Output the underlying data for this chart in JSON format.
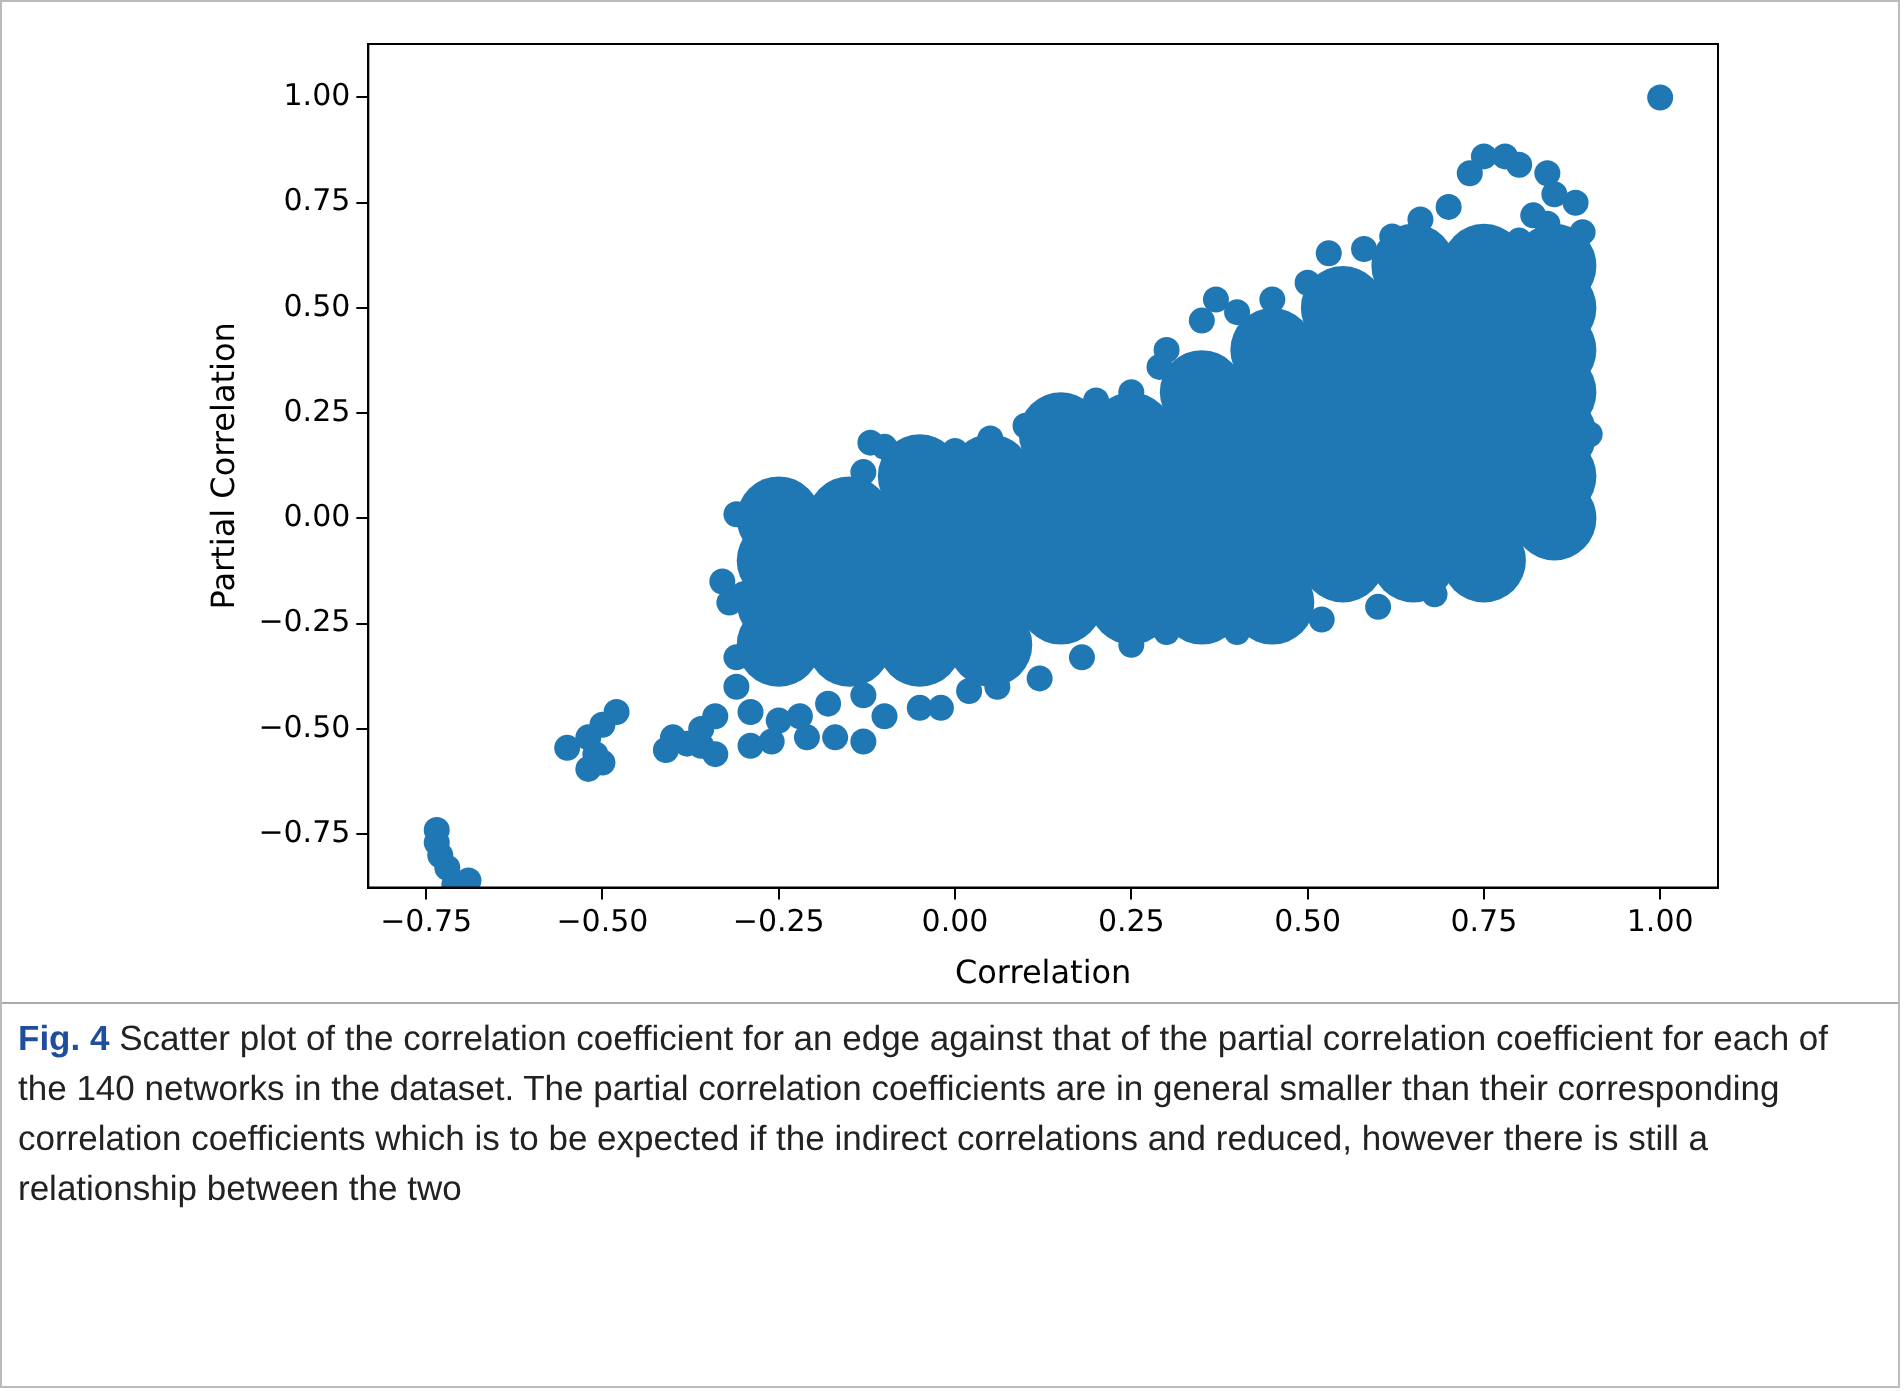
{
  "chart_data": {
    "type": "scatter",
    "xlabel": "Correlation",
    "ylabel": "Partial Correlation",
    "marker": "circle",
    "grid": false,
    "xlim": [
      -0.832,
      1.082
    ],
    "ylim": [
      -0.877,
      1.127
    ],
    "xticks": [
      {
        "value": -0.75,
        "label": "−0.75"
      },
      {
        "value": -0.5,
        "label": "−0.50"
      },
      {
        "value": -0.25,
        "label": "−0.25"
      },
      {
        "value": 0,
        "label": "0.00"
      },
      {
        "value": 0.25,
        "label": "0.25"
      },
      {
        "value": 0.5,
        "label": "0.50"
      },
      {
        "value": 0.75,
        "label": "0.75"
      },
      {
        "value": 1,
        "label": "1.00"
      }
    ],
    "yticks": [
      {
        "value": -0.75,
        "label": "−0.75"
      },
      {
        "value": -0.5,
        "label": "−0.50"
      },
      {
        "value": -0.25,
        "label": "−0.25"
      },
      {
        "value": 0,
        "label": "0.00"
      },
      {
        "value": 0.25,
        "label": "0.25"
      },
      {
        "value": 0.5,
        "label": "0.50"
      },
      {
        "value": 0.75,
        "label": "0.75"
      },
      {
        "value": 1,
        "label": "1.00"
      }
    ],
    "annotations": [
      "Fig. 4  Scatter plot of the correlation coefficient for an edge against that of the partial correlation coefficient for each of the 140 networks in the dataset. The partial correlation coefficients are in general smaller than their corresponding correlation coefficients which is to be expected if the indirect correlations and reduced, however there is still a relationship between the two"
    ],
    "series": [
      {
        "color": "#1f77b4",
        "x": [
          1.0,
          -0.735,
          -0.735,
          -0.73,
          -0.72,
          -0.71,
          -0.69,
          -0.55,
          -0.52,
          -0.5,
          -0.48,
          -0.52,
          -0.5,
          -0.51,
          -0.41,
          -0.4,
          -0.38,
          -0.36,
          -0.34,
          -0.36,
          -0.34,
          -0.29,
          -0.26,
          -0.21,
          -0.17,
          -0.13,
          -0.33,
          -0.3,
          -0.31,
          -0.13,
          -0.12,
          -0.1,
          0.0,
          0.05,
          0.1,
          0.2,
          0.25,
          0.29,
          0.3,
          0.35,
          0.37,
          0.4,
          0.45,
          0.5,
          0.53,
          0.58,
          0.62,
          0.66,
          0.7,
          0.73,
          0.75,
          0.78,
          0.8,
          0.84,
          0.85,
          0.82,
          0.8,
          0.84,
          0.88,
          0.89,
          0.9,
          0.68,
          0.6,
          0.52,
          0.4,
          0.3,
          0.25,
          0.18,
          0.12,
          0.06,
          0.02,
          -0.02,
          -0.05,
          -0.1,
          -0.13,
          -0.18,
          -0.22,
          -0.25,
          -0.29,
          -0.31,
          -0.31,
          -0.32
        ],
        "values": [
          1.0,
          -0.74,
          -0.77,
          -0.8,
          -0.83,
          -0.87,
          -0.86,
          -0.545,
          -0.52,
          -0.49,
          -0.46,
          -0.595,
          -0.58,
          -0.56,
          -0.55,
          -0.52,
          -0.535,
          -0.54,
          -0.56,
          -0.5,
          -0.47,
          -0.54,
          -0.53,
          -0.52,
          -0.52,
          -0.53,
          -0.15,
          -0.18,
          0.01,
          0.11,
          0.18,
          0.17,
          0.16,
          0.19,
          0.22,
          0.28,
          0.3,
          0.36,
          0.4,
          0.47,
          0.52,
          0.49,
          0.52,
          0.56,
          0.63,
          0.64,
          0.67,
          0.71,
          0.74,
          0.82,
          0.86,
          0.86,
          0.84,
          0.82,
          0.77,
          0.72,
          0.66,
          0.7,
          0.75,
          0.68,
          0.2,
          -0.18,
          -0.21,
          -0.24,
          -0.27,
          -0.27,
          -0.3,
          -0.33,
          -0.38,
          -0.4,
          -0.41,
          -0.45,
          -0.45,
          -0.47,
          -0.42,
          -0.44,
          -0.47,
          -0.48,
          -0.46,
          -0.4,
          -0.33,
          -0.2
        ]
      },
      {
        "color": "#1f77b4",
        "x": [
          -0.25,
          -0.15,
          -0.05,
          0.05,
          -0.25,
          -0.15,
          -0.05,
          0.05,
          0.15,
          0.25,
          0.35,
          0.45,
          -0.25,
          -0.15,
          -0.05,
          0.05,
          0.15,
          0.25,
          0.35,
          0.45,
          0.55,
          0.65,
          0.75,
          -0.25,
          -0.15,
          -0.05,
          0.05,
          0.15,
          0.25,
          0.35,
          0.45,
          0.55,
          0.65,
          0.75,
          0.85,
          -0.05,
          0.05,
          0.15,
          0.25,
          0.35,
          0.45,
          0.55,
          0.65,
          0.75,
          0.85,
          0.15,
          0.25,
          0.35,
          0.45,
          0.55,
          0.65,
          0.75,
          0.85,
          0.35,
          0.45,
          0.55,
          0.65,
          0.75,
          0.85,
          0.45,
          0.55,
          0.65,
          0.75,
          0.85,
          0.55,
          0.65,
          0.75,
          0.85,
          0.65,
          0.75,
          0.85
        ],
        "values": [
          -0.3,
          -0.3,
          -0.3,
          -0.3,
          -0.2,
          -0.2,
          -0.2,
          -0.2,
          -0.2,
          -0.2,
          -0.2,
          -0.2,
          -0.1,
          -0.1,
          -0.1,
          -0.1,
          -0.1,
          -0.1,
          -0.1,
          -0.1,
          -0.1,
          -0.1,
          -0.1,
          0,
          0,
          0,
          0,
          0,
          0,
          0,
          0,
          0,
          0,
          0,
          0,
          0.1,
          0.1,
          0.1,
          0.1,
          0.1,
          0.1,
          0.1,
          0.1,
          0.1,
          0.1,
          0.2,
          0.2,
          0.2,
          0.2,
          0.2,
          0.2,
          0.2,
          0.2,
          0.3,
          0.3,
          0.3,
          0.3,
          0.3,
          0.3,
          0.4,
          0.4,
          0.4,
          0.4,
          0.4,
          0.5,
          0.5,
          0.5,
          0.5,
          0.6,
          0.6,
          0.6
        ]
      }
    ]
  }
}
